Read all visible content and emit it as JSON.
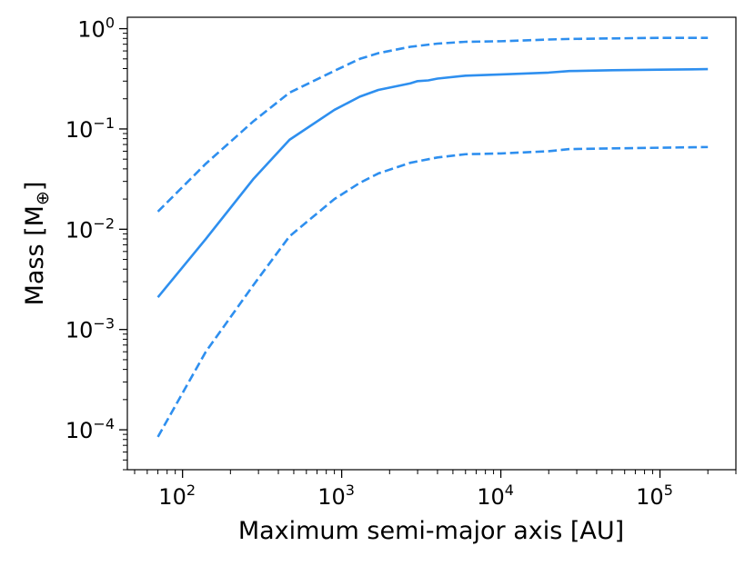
{
  "chart_data": {
    "type": "line",
    "xlabel": "Maximum semi-major axis [AU]",
    "ylabel_main": "Mass [M",
    "ylabel_sub": "⊕",
    "ylabel_end": "]",
    "xscale": "log",
    "yscale": "log",
    "xlim": [
      45,
      300000
    ],
    "ylim": [
      4e-05,
      1.3
    ],
    "grid": false,
    "x_ticks": [
      {
        "base": "10",
        "exp": "2",
        "value": 100
      },
      {
        "base": "10",
        "exp": "3",
        "value": 1000
      },
      {
        "base": "10",
        "exp": "4",
        "value": 10000
      },
      {
        "base": "10",
        "exp": "5",
        "value": 100000
      }
    ],
    "y_ticks": [
      {
        "base": "10",
        "exp": "−4",
        "value": 0.0001
      },
      {
        "base": "10",
        "exp": "−3",
        "value": 0.001
      },
      {
        "base": "10",
        "exp": "−2",
        "value": 0.01
      },
      {
        "base": "10",
        "exp": "−1",
        "value": 0.1
      },
      {
        "base": "10",
        "exp": "0",
        "value": 1
      }
    ],
    "color": "#2e8fef",
    "series": [
      {
        "style": "dashed",
        "x": [
          70,
          140,
          280,
          470,
          900,
          1300,
          1700,
          2700,
          4000,
          6000,
          10000,
          20000,
          27000,
          50000,
          100000,
          200000
        ],
        "y": [
          0.015,
          0.045,
          0.12,
          0.23,
          0.38,
          0.5,
          0.57,
          0.66,
          0.71,
          0.74,
          0.75,
          0.78,
          0.79,
          0.8,
          0.81,
          0.81
        ]
      },
      {
        "style": "solid",
        "x": [
          70,
          140,
          280,
          470,
          900,
          1300,
          1700,
          2700,
          3000,
          3500,
          4000,
          6000,
          10000,
          20000,
          27000,
          50000,
          100000,
          200000
        ],
        "y": [
          0.0021,
          0.008,
          0.032,
          0.078,
          0.155,
          0.21,
          0.245,
          0.285,
          0.3,
          0.305,
          0.318,
          0.34,
          0.35,
          0.365,
          0.378,
          0.385,
          0.39,
          0.395
        ]
      },
      {
        "style": "dashed",
        "x": [
          70,
          140,
          280,
          470,
          900,
          1300,
          1700,
          2700,
          4000,
          6000,
          10000,
          20000,
          27000,
          50000,
          100000,
          200000
        ],
        "y": [
          8.5e-05,
          0.0006,
          0.0028,
          0.0085,
          0.02,
          0.029,
          0.036,
          0.046,
          0.052,
          0.056,
          0.057,
          0.06,
          0.063,
          0.064,
          0.065,
          0.066
        ]
      }
    ]
  }
}
